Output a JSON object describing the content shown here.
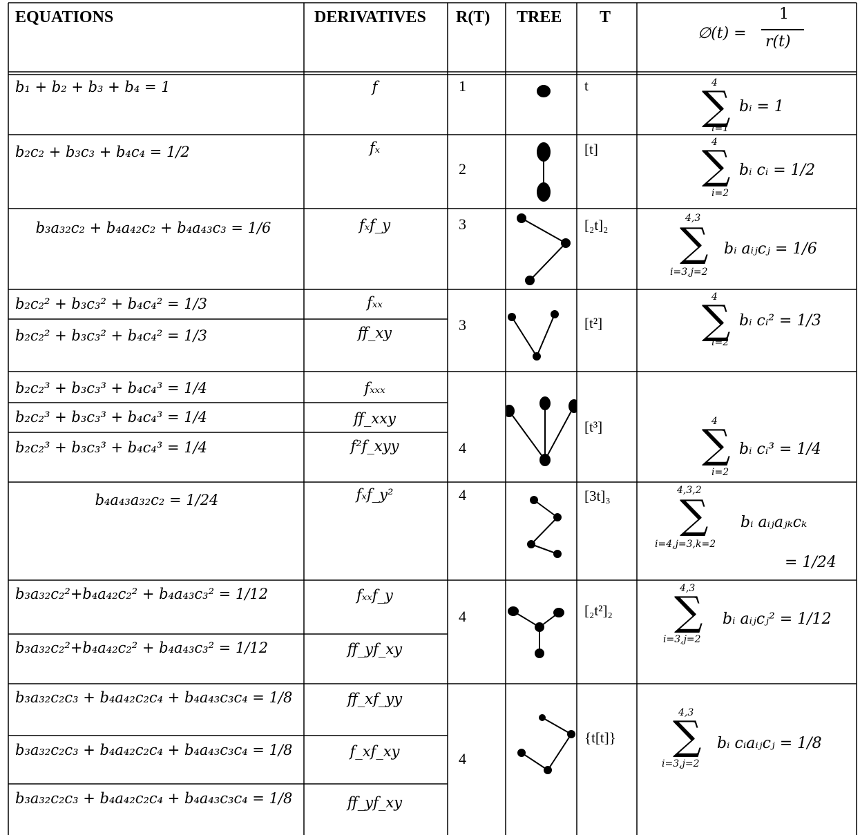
{
  "headers": {
    "equations": "EQUATIONS",
    "derivatives": "DERIVATIVES",
    "rt": "R(T)",
    "tree": "TREE",
    "t": "T",
    "phi_lhs": "∅(t) =",
    "phi_num": "1",
    "phi_den": "r(t)"
  },
  "rows": [
    {
      "eq": [
        "b₁ + b₂ + b₃ + b₄ = 1"
      ],
      "deriv": [
        "f"
      ],
      "r": "1",
      "t": "t"
    },
    {
      "eq": [
        "b₂c₂ + b₃c₃ + b₄c₄ = 1/2"
      ],
      "deriv": [
        "fₓ"
      ],
      "r": "2",
      "t": "[t]"
    },
    {
      "eq": [
        "b₃a₃₂c₂ + b₄a₄₂c₂ + b₄a₄₃c₃ = 1/6"
      ],
      "deriv": [
        "fₓf_y"
      ],
      "r": "3",
      "t": "[₂t]₂"
    },
    {
      "eq": [
        "b₂c₂² + b₃c₃² + b₄c₄² = 1/3",
        "b₂c₂² + b₃c₃² + b₄c₄² = 1/3"
      ],
      "deriv": [
        "fₓₓ",
        "ff_xy"
      ],
      "r": "3",
      "t": "[t²]"
    },
    {
      "eq": [
        "b₂c₂³ + b₃c₃³ + b₄c₄³ = 1/4",
        "b₂c₂³ + b₃c₃³ + b₄c₄³ = 1/4",
        "b₂c₂³ + b₃c₃³ + b₄c₄³ = 1/4"
      ],
      "deriv": [
        "fₓₓₓ",
        "ff_xxy",
        "f²f_xyy"
      ],
      "r": "4",
      "t": "[t³]"
    },
    {
      "eq": [
        "b₄a₄₃a₃₂c₂ = 1/24"
      ],
      "deriv": [
        "fₓf_y²"
      ],
      "r": "4",
      "t": "[3t]₃"
    },
    {
      "eq": [
        "b₃a₃₂c₂²+b₄a₄₂c₂² + b₄a₄₃c₃² = 1/12",
        "b₃a₃₂c₂²+b₄a₄₂c₂² + b₄a₄₃c₃² = 1/12"
      ],
      "deriv": [
        "fₓₓf_y",
        "ff_yf_xy"
      ],
      "r": "4",
      "t": "[₂t²]₂"
    },
    {
      "eq": [
        "b₃a₃₂c₂c₃ + b₄a₄₂c₂c₄ + b₄a₄₃c₃c₄ = 1/8",
        "b₃a₃₂c₂c₃ + b₄a₄₂c₂c₄ + b₄a₄₃c₃c₄ = 1/8",
        "b₃a₃₂c₂c₃ + b₄a₄₂c₂c₄ + b₄a₄₃c₃c₄ = 1/8"
      ],
      "deriv": [
        "ff_xf_yy",
        "f_xf_xy",
        "ff_yf_xy"
      ],
      "r": "4",
      "t": "{t[t]}"
    }
  ],
  "sums": [
    {
      "top": "4",
      "bot": "i=1",
      "rhs": "bᵢ = 1"
    },
    {
      "top": "4",
      "bot": "i=2",
      "rhs": "bᵢ cᵢ = 1/2"
    },
    {
      "top": "4,3",
      "bot": "i=3,j=2",
      "rhs": "bᵢ aᵢⱼcⱼ = 1/6"
    },
    {
      "top": "4",
      "bot": "i=2",
      "rhs": "bᵢ cᵢ² = 1/3"
    },
    {
      "top": "4",
      "bot": "i=2",
      "rhs": "bᵢ cᵢ³ = 1/4"
    },
    {
      "top": "4,3,2",
      "bot": "i=4,j=3,k=2",
      "rhs": "bᵢ aᵢⱼaⱼₖcₖ",
      "rhs2": "= 1/24"
    },
    {
      "top": "4,3",
      "bot": "i=3,j=2",
      "rhs": "bᵢ aᵢⱼcⱼ² = 1/12"
    },
    {
      "top": "4,3",
      "bot": "i=3,j=2",
      "rhs": "bᵢ cᵢaᵢⱼcⱼ = 1/8"
    }
  ]
}
